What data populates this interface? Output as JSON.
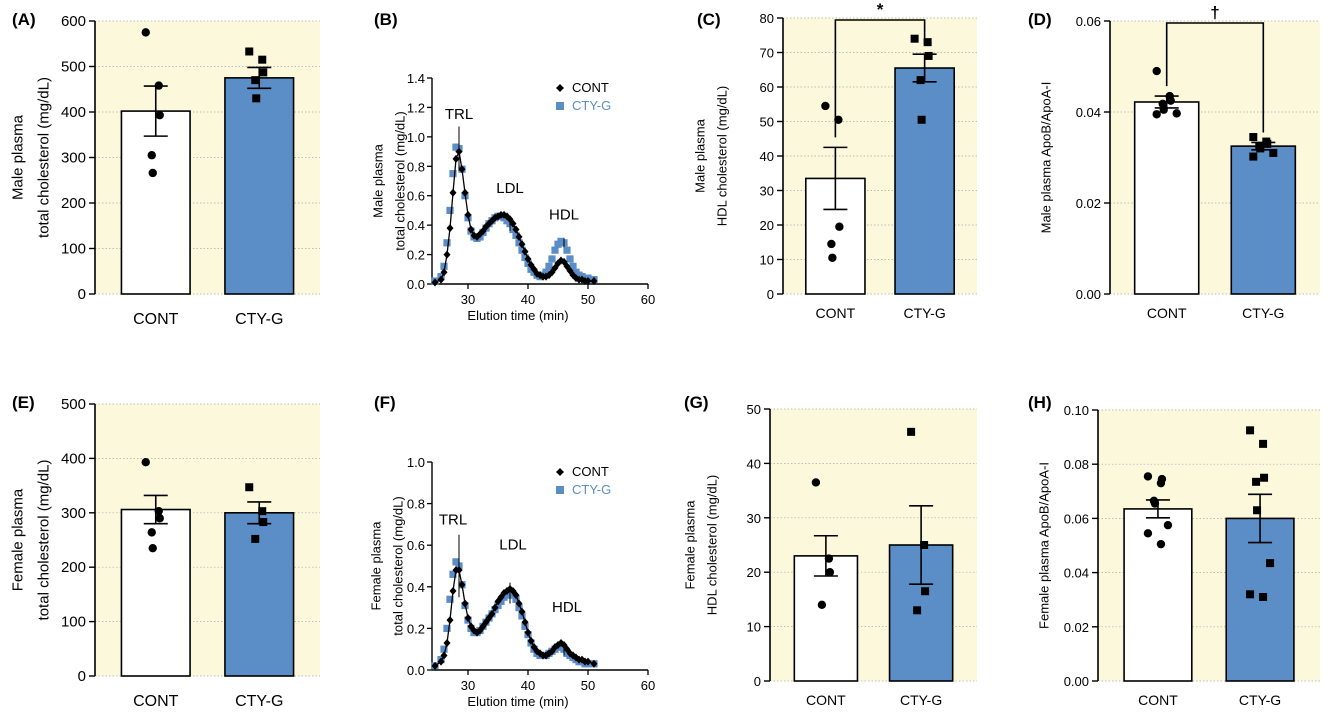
{
  "colors": {
    "plot_bg": "#fbf8dc",
    "cont_fill": "#ffffff",
    "ctyg_fill": "#5b8dc7",
    "ctyg_marker": "#5b8dc7",
    "cont_marker": "#000000",
    "grid": "#aaaaaa",
    "ctyg_label": "#5b8dc7"
  },
  "chart_data": [
    {
      "panel": "(A)",
      "type": "bar",
      "categories": [
        "CONT",
        "CTY-G"
      ],
      "ylabel": [
        "Male plasma",
        "total cholesterol (mg/dL)"
      ],
      "ylim": [
        0,
        600
      ],
      "yticks": [
        0,
        100,
        200,
        300,
        400,
        500,
        600
      ],
      "means": [
        402,
        475
      ],
      "sem": [
        55,
        23
      ],
      "points": [
        [
          575,
          458,
          393,
          305,
          266
        ],
        [
          533,
          515,
          487,
          470,
          430
        ]
      ],
      "markers": [
        "circle",
        "square"
      ],
      "grid": true
    },
    {
      "panel": "(B)",
      "type": "line",
      "xlabel": "Elution time (min)",
      "ylabel": [
        "Male plasma",
        "total cholesterol (mg/dL)"
      ],
      "xlim": [
        24,
        60
      ],
      "ylim": [
        0,
        1.4
      ],
      "xticks": [
        30,
        40,
        50,
        60
      ],
      "yticks": [
        0.0,
        0.2,
        0.4,
        0.6,
        0.8,
        1.0,
        1.2,
        1.4
      ],
      "grid": false,
      "legend": "top-right",
      "annotations": [
        {
          "text": "TRL",
          "x": 28.5,
          "y": 1.12
        },
        {
          "text": "LDL",
          "x": 37,
          "y": 0.62
        },
        {
          "text": "HDL",
          "x": 46,
          "y": 0.44
        }
      ],
      "series": [
        {
          "name": "CONT",
          "marker": "diamond",
          "x": [
            24.5,
            25.5,
            26,
            26.5,
            27,
            27.5,
            28,
            28.5,
            29,
            29.5,
            30,
            30.5,
            31,
            31.5,
            32,
            32.5,
            33,
            33.5,
            34,
            34.5,
            35,
            35.5,
            36,
            36.5,
            37,
            37.5,
            38,
            38.5,
            39,
            39.5,
            40,
            40.5,
            41,
            41.5,
            42,
            42.5,
            43,
            43.5,
            44,
            44.5,
            45,
            45.5,
            46,
            46.5,
            47,
            47.5,
            48,
            48.5,
            49,
            49.5,
            50,
            51
          ],
          "y": [
            0.01,
            0.03,
            0.08,
            0.2,
            0.38,
            0.62,
            0.85,
            0.9,
            0.78,
            0.62,
            0.47,
            0.37,
            0.33,
            0.32,
            0.34,
            0.36,
            0.39,
            0.41,
            0.43,
            0.45,
            0.46,
            0.47,
            0.47,
            0.46,
            0.44,
            0.41,
            0.37,
            0.32,
            0.27,
            0.22,
            0.17,
            0.13,
            0.1,
            0.07,
            0.06,
            0.05,
            0.05,
            0.06,
            0.08,
            0.11,
            0.14,
            0.16,
            0.15,
            0.12,
            0.09,
            0.06,
            0.04,
            0.03,
            0.03,
            0.02,
            0.02,
            0.02
          ]
        },
        {
          "name": "CTY-G",
          "marker": "square",
          "x": [
            24.5,
            25.5,
            26,
            26.5,
            27,
            27.5,
            28,
            28.5,
            29,
            29.5,
            30,
            30.5,
            31,
            31.5,
            32,
            32.5,
            33,
            33.5,
            34,
            34.5,
            35,
            35.5,
            36,
            36.5,
            37,
            37.5,
            38,
            38.5,
            39,
            39.5,
            40,
            40.5,
            41,
            41.5,
            42,
            42.5,
            43,
            43.5,
            44,
            44.5,
            45,
            45.5,
            46,
            46.5,
            47,
            47.5,
            48,
            48.5,
            49,
            49.5,
            50,
            51
          ],
          "y": [
            0.02,
            0.05,
            0.12,
            0.28,
            0.5,
            0.75,
            0.93,
            0.92,
            0.78,
            0.6,
            0.45,
            0.36,
            0.32,
            0.31,
            0.32,
            0.35,
            0.38,
            0.41,
            0.43,
            0.45,
            0.46,
            0.46,
            0.45,
            0.43,
            0.41,
            0.37,
            0.33,
            0.28,
            0.23,
            0.18,
            0.14,
            0.1,
            0.08,
            0.06,
            0.05,
            0.06,
            0.08,
            0.12,
            0.17,
            0.23,
            0.27,
            0.29,
            0.28,
            0.23,
            0.17,
            0.12,
            0.08,
            0.06,
            0.05,
            0.04,
            0.04,
            0.03
          ]
        }
      ]
    },
    {
      "panel": "(C)",
      "type": "bar",
      "categories": [
        "CONT",
        "CTY-G"
      ],
      "ylabel": [
        "Male plasma",
        "HDL cholesterol (mg/dL)"
      ],
      "ylim": [
        0,
        80
      ],
      "yticks": [
        0,
        10,
        20,
        30,
        40,
        50,
        60,
        70,
        80
      ],
      "means": [
        33.5,
        65.5
      ],
      "sem": [
        9,
        4
      ],
      "points": [
        [
          54.5,
          50.5,
          19.5,
          14.5,
          10.5
        ],
        [
          74,
          73,
          69,
          62,
          50.5
        ]
      ],
      "markers": [
        "circle",
        "square"
      ],
      "grid": true,
      "significance": "*"
    },
    {
      "panel": "(D)",
      "type": "bar",
      "categories": [
        "CONT",
        "CTY-G"
      ],
      "ylabel": [
        "Male plasma ApoB/ApoA-I"
      ],
      "ylim": [
        0,
        0.06
      ],
      "yticks": [
        0.0,
        0.02,
        0.04,
        0.06
      ],
      "ytick_labels": [
        "0.00",
        "0.02",
        "0.04",
        "0.06"
      ],
      "means": [
        0.0422,
        0.0325
      ],
      "sem": [
        0.0013,
        0.0008
      ],
      "points": [
        [
          0.049,
          0.0435,
          0.0425,
          0.0418,
          0.0405,
          0.0397,
          0.0395
        ],
        [
          0.0345,
          0.0335,
          0.033,
          0.0325,
          0.032,
          0.031,
          0.0302
        ]
      ],
      "markers": [
        "circle",
        "square"
      ],
      "grid": true,
      "significance": "†"
    },
    {
      "panel": "(E)",
      "type": "bar",
      "categories": [
        "CONT",
        "CTY-G"
      ],
      "ylabel": [
        "Female plasma",
        "total cholesterol (mg/dL)"
      ],
      "ylim": [
        0,
        500
      ],
      "yticks": [
        0,
        100,
        200,
        300,
        400,
        500
      ],
      "means": [
        306,
        300
      ],
      "sem": [
        26,
        20
      ],
      "points": [
        [
          393,
          303,
          290,
          264,
          235
        ],
        [
          347,
          303,
          283,
          252
        ]
      ],
      "markers": [
        "circle",
        "square"
      ],
      "grid": true
    },
    {
      "panel": "(F)",
      "type": "line",
      "xlabel": "Elution time (min)",
      "ylabel": [
        "Female plasma",
        "total cholesterol (mg/dL)"
      ],
      "xlim": [
        24,
        60
      ],
      "ylim": [
        0,
        1.0
      ],
      "xticks": [
        30,
        40,
        50,
        60
      ],
      "yticks": [
        0.0,
        0.2,
        0.4,
        0.6,
        0.8,
        1.0
      ],
      "grid": false,
      "legend": "top-right",
      "annotations": [
        {
          "text": "TRL",
          "x": 27.5,
          "y": 0.7
        },
        {
          "text": "LDL",
          "x": 37.5,
          "y": 0.58
        },
        {
          "text": "HDL",
          "x": 46.5,
          "y": 0.28
        }
      ],
      "series": [
        {
          "name": "CONT",
          "marker": "diamond",
          "x": [
            24.5,
            25.5,
            26,
            26.5,
            27,
            27.5,
            28,
            28.5,
            29,
            29.5,
            30,
            30.5,
            31,
            31.5,
            32,
            32.5,
            33,
            33.5,
            34,
            34.5,
            35,
            35.5,
            36,
            36.5,
            37,
            37.5,
            38,
            38.5,
            39,
            39.5,
            40,
            40.5,
            41,
            41.5,
            42,
            42.5,
            43,
            43.5,
            44,
            44.5,
            45,
            45.5,
            46,
            46.5,
            47,
            47.5,
            48,
            48.5,
            49,
            49.5,
            50,
            51
          ],
          "y": [
            0.02,
            0.04,
            0.07,
            0.13,
            0.24,
            0.38,
            0.48,
            0.48,
            0.41,
            0.32,
            0.25,
            0.21,
            0.19,
            0.18,
            0.19,
            0.21,
            0.23,
            0.25,
            0.27,
            0.3,
            0.33,
            0.35,
            0.37,
            0.38,
            0.39,
            0.38,
            0.36,
            0.32,
            0.28,
            0.23,
            0.18,
            0.14,
            0.11,
            0.09,
            0.08,
            0.07,
            0.07,
            0.08,
            0.09,
            0.11,
            0.12,
            0.13,
            0.12,
            0.1,
            0.08,
            0.07,
            0.06,
            0.05,
            0.05,
            0.04,
            0.04,
            0.03
          ]
        },
        {
          "name": "CTY-G",
          "marker": "square",
          "x": [
            24.5,
            25.5,
            26,
            26.5,
            27,
            27.5,
            28,
            28.5,
            29,
            29.5,
            30,
            30.5,
            31,
            31.5,
            32,
            32.5,
            33,
            33.5,
            34,
            34.5,
            35,
            35.5,
            36,
            36.5,
            37,
            37.5,
            38,
            38.5,
            39,
            39.5,
            40,
            40.5,
            41,
            41.5,
            42,
            42.5,
            43,
            43.5,
            44,
            44.5,
            45,
            45.5,
            46,
            46.5,
            47,
            47.5,
            48,
            48.5,
            49,
            49.5,
            50,
            51
          ],
          "y": [
            0.02,
            0.05,
            0.1,
            0.2,
            0.34,
            0.46,
            0.52,
            0.5,
            0.41,
            0.31,
            0.24,
            0.2,
            0.18,
            0.18,
            0.19,
            0.21,
            0.23,
            0.25,
            0.27,
            0.29,
            0.31,
            0.33,
            0.35,
            0.36,
            0.37,
            0.36,
            0.34,
            0.3,
            0.26,
            0.21,
            0.17,
            0.13,
            0.1,
            0.08,
            0.07,
            0.07,
            0.07,
            0.08,
            0.09,
            0.1,
            0.11,
            0.11,
            0.1,
            0.08,
            0.07,
            0.06,
            0.05,
            0.04,
            0.04,
            0.03,
            0.03,
            0.03
          ]
        }
      ]
    },
    {
      "panel": "(G)",
      "type": "bar",
      "categories": [
        "CONT",
        "CTY-G"
      ],
      "ylabel": [
        "Female plasma",
        "HDL cholesterol (mg/dL)"
      ],
      "ylim": [
        0,
        50
      ],
      "yticks": [
        0,
        10,
        20,
        30,
        40,
        50
      ],
      "means": [
        23,
        25
      ],
      "sem": [
        3.7,
        7.2
      ],
      "points": [
        [
          36.5,
          22.5,
          20,
          14
        ],
        [
          45.8,
          25,
          16.5,
          13
        ]
      ],
      "markers": [
        "circle",
        "square"
      ],
      "grid": true
    },
    {
      "panel": "(H)",
      "type": "bar",
      "categories": [
        "CONT",
        "CTY-G"
      ],
      "ylabel": [
        "Female plasma ApoB/ApoA-I"
      ],
      "ylim": [
        0,
        0.1
      ],
      "yticks": [
        0.0,
        0.02,
        0.04,
        0.06,
        0.08,
        0.1
      ],
      "ytick_labels": [
        "0.00",
        "0.02",
        "0.04",
        "0.06",
        "0.08",
        "0.10"
      ],
      "means": [
        0.0635,
        0.06
      ],
      "sem": [
        0.0033,
        0.0089
      ],
      "points": [
        [
          0.0755,
          0.073,
          0.0745,
          0.0665,
          0.0655,
          0.0575,
          0.0545,
          0.0505
        ],
        [
          0.0925,
          0.0875,
          0.075,
          0.0735,
          0.063,
          0.0435,
          0.032,
          0.031
        ]
      ],
      "markers": [
        "circle",
        "square"
      ],
      "grid": true
    }
  ]
}
